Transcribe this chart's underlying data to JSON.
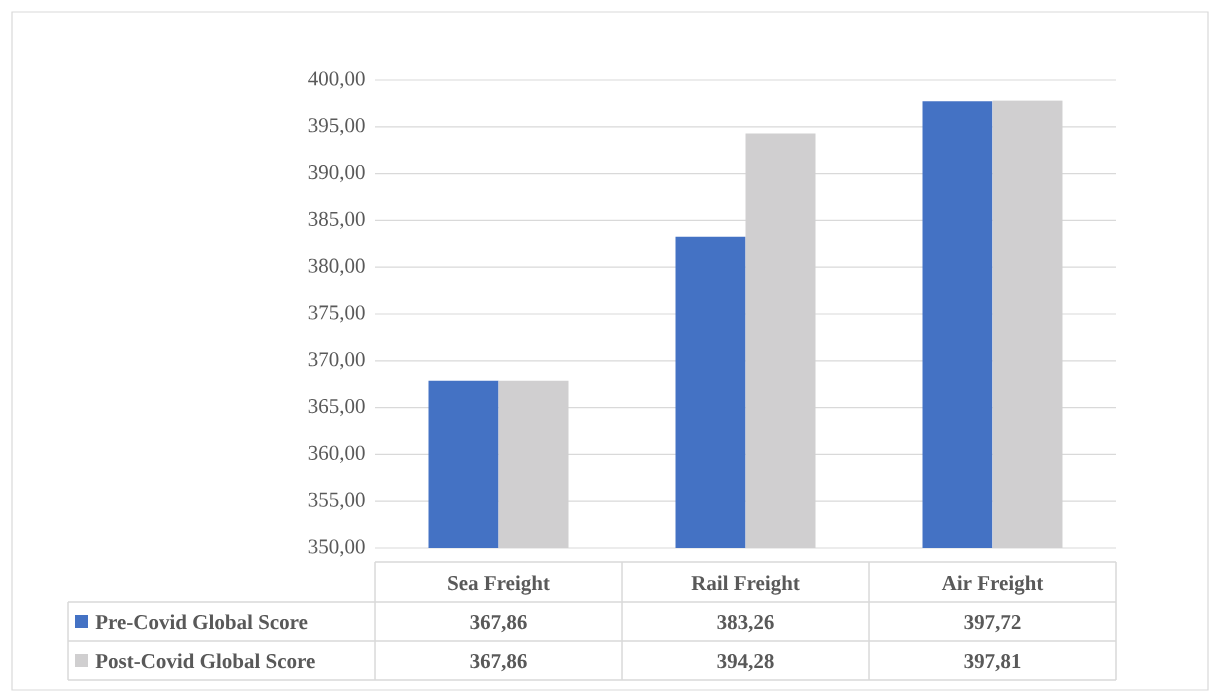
{
  "chart_data": {
    "type": "bar",
    "categories": [
      "Sea Freight",
      "Rail Freight",
      "Air Freight"
    ],
    "series": [
      {
        "name": "Pre-Covid Global Score",
        "color": "#4472c4",
        "values": [
          367.86,
          383.26,
          397.72
        ],
        "value_labels": [
          "367,86",
          "383,26",
          "397,72"
        ]
      },
      {
        "name": "Post-Covid Global Score",
        "color": "#d0cfd0",
        "values": [
          367.86,
          394.28,
          397.81
        ],
        "value_labels": [
          "367,86",
          "394,28",
          "397,81"
        ]
      }
    ],
    "ylim": [
      350,
      400
    ],
    "yticks": [
      {
        "value": 350,
        "label": "350,00"
      },
      {
        "value": 355,
        "label": "355,00"
      },
      {
        "value": 360,
        "label": "360,00"
      },
      {
        "value": 365,
        "label": "365,00"
      },
      {
        "value": 370,
        "label": "370,00"
      },
      {
        "value": 375,
        "label": "375,00"
      },
      {
        "value": 380,
        "label": "380,00"
      },
      {
        "value": 385,
        "label": "385,00"
      },
      {
        "value": 390,
        "label": "390,00"
      },
      {
        "value": 395,
        "label": "395,00"
      },
      {
        "value": 400,
        "label": "400,00"
      }
    ],
    "grid": "y",
    "legend": "bottom"
  }
}
